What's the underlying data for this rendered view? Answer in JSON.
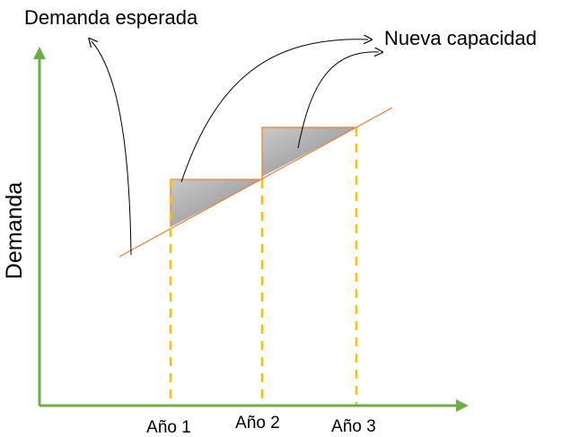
{
  "annotations": {
    "expected_demand": "Demanda esperada",
    "new_capacity": "Nueva capacidad"
  },
  "axes": {
    "y_label": "Demanda",
    "x_ticks": [
      "Año 1",
      "Año 2",
      "Año 3"
    ]
  },
  "colors": {
    "axis": "#70ad47",
    "trend_line": "#ed7d31",
    "dashed_guides": "#ffc000",
    "shaded_area": "#a6a6a6",
    "arrows": "#000000"
  }
}
